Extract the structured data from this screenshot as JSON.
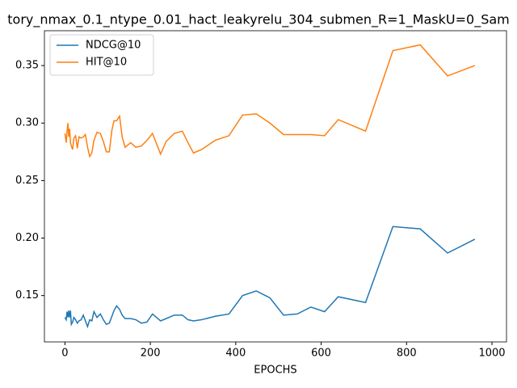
{
  "chart_data": {
    "type": "line",
    "title": "tory_nmax_0.1_ntype_0.01_hact_leakyrelu_304_submen_R=1_MaskU=0_Sam",
    "x_label": "EPOCHS",
    "x": [
      0,
      3,
      5,
      7,
      9,
      11,
      13,
      15,
      18,
      21,
      25,
      29,
      33,
      38,
      43,
      48,
      53,
      58,
      63,
      68,
      75,
      83,
      90,
      97,
      104,
      110,
      115,
      121,
      128,
      134,
      141,
      154,
      166,
      179,
      192,
      205,
      224,
      237,
      256,
      275,
      288,
      301,
      320,
      352,
      384,
      416,
      448,
      480,
      512,
      544,
      576,
      608,
      640,
      704,
      768,
      832,
      896,
      960
    ],
    "series": [
      {
        "name": "NDCG@10",
        "color": "#1f77b4",
        "values": [
          0.131,
          0.129,
          0.136,
          0.131,
          0.137,
          0.131,
          0.137,
          0.125,
          0.127,
          0.131,
          0.129,
          0.126,
          0.128,
          0.129,
          0.133,
          0.128,
          0.123,
          0.129,
          0.128,
          0.136,
          0.131,
          0.134,
          0.129,
          0.125,
          0.126,
          0.132,
          0.137,
          0.141,
          0.138,
          0.133,
          0.13,
          0.13,
          0.129,
          0.126,
          0.127,
          0.134,
          0.128,
          0.13,
          0.133,
          0.133,
          0.129,
          0.128,
          0.129,
          0.132,
          0.134,
          0.15,
          0.154,
          0.148,
          0.133,
          0.134,
          0.14,
          0.136,
          0.149,
          0.144,
          0.21,
          0.208,
          0.187,
          0.199
        ]
      },
      {
        "name": "HIT@10",
        "color": "#ff7f0e",
        "values": [
          0.291,
          0.283,
          0.293,
          0.3,
          0.288,
          0.295,
          0.283,
          0.28,
          0.277,
          0.287,
          0.289,
          0.278,
          0.288,
          0.287,
          0.288,
          0.29,
          0.279,
          0.271,
          0.274,
          0.285,
          0.292,
          0.291,
          0.284,
          0.275,
          0.275,
          0.294,
          0.302,
          0.302,
          0.306,
          0.288,
          0.279,
          0.283,
          0.279,
          0.28,
          0.285,
          0.291,
          0.273,
          0.284,
          0.291,
          0.293,
          0.283,
          0.274,
          0.277,
          0.285,
          0.289,
          0.307,
          0.308,
          0.3,
          0.29,
          0.29,
          0.29,
          0.289,
          0.303,
          0.293,
          0.363,
          0.368,
          0.341,
          0.35
        ]
      }
    ],
    "xlim": [
      -48,
      1034
    ],
    "xticks": [
      0,
      200,
      400,
      600,
      800,
      1000
    ],
    "ylim": [
      0.1097,
      0.3803
    ],
    "yticks": [
      0.15,
      {
        "value": 0.2,
        "label": "0.20"
      },
      0.25,
      {
        "value": 0.3,
        "label": "0.30"
      },
      0.35
    ],
    "grid": false,
    "legend": "upper-left"
  }
}
